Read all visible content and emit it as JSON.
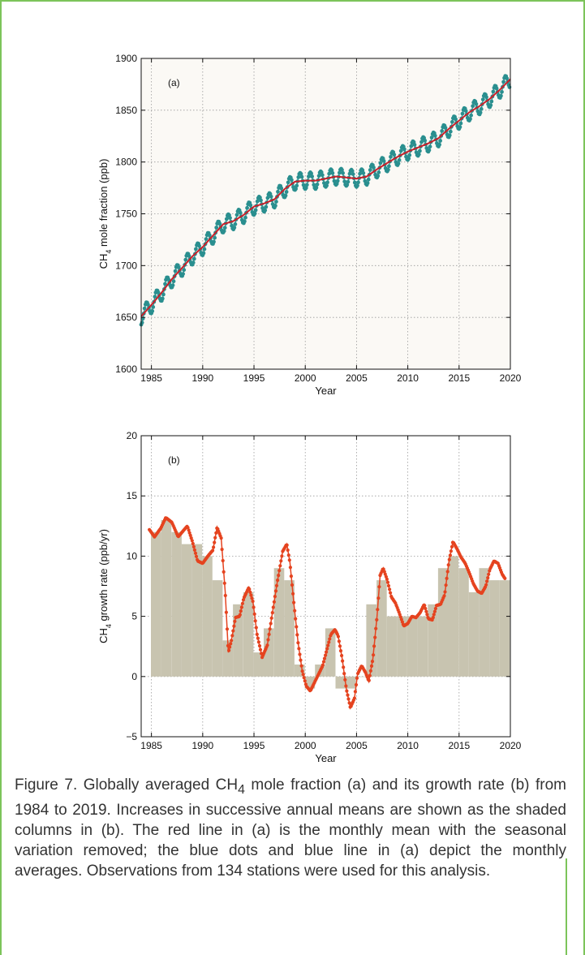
{
  "frame_color": "#7cc45a",
  "caption": {
    "pre": "Figure 7. Globally averaged CH",
    "sub": "4",
    "post": " mole fraction (a) and its growth rate (b) from 1984 to 2019. Increases in successive annual means are shown as the shaded columns in (b). The red line in (a) is the monthly mean with the seasonal variation removed; the blue dots and blue line in (a) depict the monthly averages. Observations from 134 stations were used for this analysis."
  },
  "chart_data": [
    {
      "type": "line",
      "panel_label": "(a)",
      "xlabel": "Year",
      "ylabel_main": "CH",
      "ylabel_sub": "4",
      "ylabel_rest": " mole fraction (ppb)",
      "xlim": [
        1984,
        2020
      ],
      "ylim": [
        1600,
        1900
      ],
      "xticks": [
        1985,
        1990,
        1995,
        2000,
        2005,
        2010,
        2015,
        2020
      ],
      "yticks": [
        1600,
        1650,
        1700,
        1750,
        1800,
        1850,
        1900
      ],
      "grid": true,
      "background": "#fbf9f5",
      "series": [
        {
          "role": "deseasonalized trend",
          "color": "#c8202a",
          "x": [
            1984,
            1985,
            1986,
            1987,
            1988,
            1989,
            1990,
            1991,
            1992,
            1993,
            1994,
            1995,
            1996,
            1997,
            1998,
            1999,
            2000,
            2001,
            2002,
            2003,
            2004,
            2005,
            2006,
            2007,
            2008,
            2009,
            2010,
            2011,
            2012,
            2013,
            2014,
            2015,
            2016,
            2017,
            2018,
            2019,
            2020
          ],
          "y": [
            1651,
            1662,
            1674,
            1687,
            1698,
            1709,
            1718,
            1729,
            1740,
            1743,
            1749,
            1757,
            1760,
            1764,
            1774,
            1781,
            1782,
            1782,
            1784,
            1786,
            1785,
            1784,
            1786,
            1793,
            1799,
            1805,
            1810,
            1814,
            1818,
            1823,
            1832,
            1840,
            1848,
            1854,
            1861,
            1870,
            1880
          ]
        },
        {
          "role": "monthly averages",
          "color": "#2a8f8f",
          "seasonal_amplitude_ppb": 8
        }
      ]
    },
    {
      "type": "bar",
      "panel_label": "(b)",
      "xlabel": "Year",
      "ylabel_main": "CH",
      "ylabel_sub": "4",
      "ylabel_rest": " growth rate (ppb/yr)",
      "xlim": [
        1984,
        2020
      ],
      "ylim": [
        -5,
        20
      ],
      "xticks": [
        1985,
        1990,
        1995,
        2000,
        2005,
        2010,
        2015,
        2020
      ],
      "yticks": [
        -5,
        0,
        5,
        10,
        15,
        20
      ],
      "grid": true,
      "background": "#ffffff",
      "series": [
        {
          "role": "annual increase (shaded columns)",
          "color": "#c8c4b0",
          "categories": [
            1985,
            1986,
            1987,
            1988,
            1989,
            1990,
            1991,
            1992,
            1993,
            1994,
            1995,
            1996,
            1997,
            1998,
            1999,
            2000,
            2001,
            2002,
            2003,
            2004,
            2005,
            2006,
            2007,
            2008,
            2009,
            2010,
            2011,
            2012,
            2013,
            2014,
            2015,
            2016,
            2017,
            2018,
            2019
          ],
          "values": [
            12,
            13,
            12,
            11,
            11,
            10,
            8,
            3,
            6,
            7,
            2,
            4,
            9,
            8,
            1,
            -1,
            1,
            4,
            -1,
            -1,
            0,
            6,
            8,
            5,
            5,
            5,
            5,
            6,
            9,
            10,
            9,
            7,
            9,
            8,
            8
          ]
        },
        {
          "role": "growth rate curve",
          "color": "#e5431f",
          "x": [
            1984.8,
            1985.3,
            1985.9,
            1986.4,
            1987.0,
            1987.6,
            1988.2,
            1988.5,
            1989.0,
            1989.5,
            1990.0,
            1990.5,
            1991.0,
            1991.4,
            1991.8,
            1992.2,
            1992.5,
            1992.8,
            1993.2,
            1993.6,
            1994.0,
            1994.5,
            1994.9,
            1995.3,
            1995.8,
            1996.3,
            1996.8,
            1997.3,
            1997.8,
            1998.2,
            1998.5,
            1998.9,
            1999.3,
            1999.7,
            2000.1,
            2000.5,
            2000.9,
            2001.3,
            2001.7,
            2002.1,
            2002.5,
            2002.9,
            2003.2,
            2003.6,
            2004.0,
            2004.4,
            2004.8,
            2005.1,
            2005.5,
            2005.9,
            2006.2,
            2006.6,
            2007.0,
            2007.3,
            2007.6,
            2008.0,
            2008.4,
            2008.8,
            2009.2,
            2009.6,
            2010.0,
            2010.4,
            2010.8,
            2011.2,
            2011.6,
            2012.0,
            2012.4,
            2012.8,
            2013.2,
            2013.6,
            2014.0,
            2014.4,
            2014.8,
            2015.2,
            2015.6,
            2016.0,
            2016.4,
            2016.8,
            2017.2,
            2017.6,
            2018.0,
            2018.4,
            2018.8,
            2019.2,
            2019.5
          ],
          "y": [
            12.2,
            11.6,
            12.3,
            13.2,
            12.8,
            11.6,
            12.2,
            12.5,
            11.2,
            9.6,
            9.4,
            10.0,
            10.5,
            12.4,
            11.5,
            7.0,
            2.0,
            3.0,
            4.9,
            5.0,
            6.5,
            7.4,
            6.2,
            3.5,
            1.6,
            2.6,
            5.3,
            8.0,
            10.4,
            11.0,
            9.5,
            6.0,
            2.8,
            0.5,
            -0.8,
            -1.2,
            -0.5,
            0.2,
            0.9,
            2.2,
            3.5,
            3.9,
            3.4,
            1.5,
            -1.0,
            -2.6,
            -1.8,
            0.2,
            0.9,
            0.3,
            -0.4,
            1.5,
            5.0,
            8.4,
            9.0,
            8.0,
            6.6,
            6.1,
            5.2,
            4.2,
            4.4,
            5.0,
            4.9,
            5.3,
            6.0,
            4.8,
            4.7,
            5.9,
            6.0,
            6.8,
            9.5,
            11.2,
            10.6,
            9.9,
            9.4,
            8.6,
            7.7,
            7.1,
            6.9,
            7.5,
            8.9,
            9.6,
            9.4,
            8.5,
            8.1
          ]
        }
      ]
    }
  ]
}
